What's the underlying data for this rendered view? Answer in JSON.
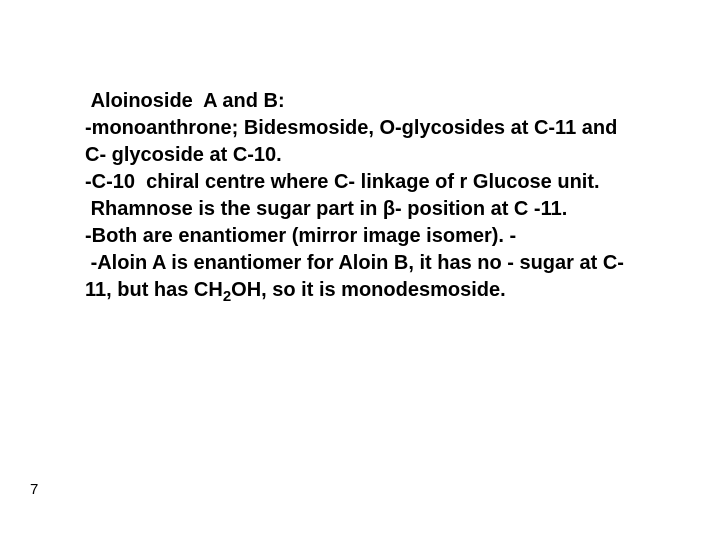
{
  "body": {
    "line1": " Aloinoside  A and B:",
    "line2": "-monoanthrone; Bidesmoside, O-glycosides at C-11 and C- glycoside at C-10.",
    "line3": "-C-10  chiral centre where C- linkage of r Glucose unit.",
    "line4": " Rhamnose is the sugar part in β- position at C -11.",
    "line5": "-Both are enantiomer (mirror image isomer). -",
    "line6_pre": " -Aloin A is enantiomer for Aloin B, it has no - sugar at C-11, but has CH",
    "line6_sub": "2",
    "line6_post": "OH, so it is monodesmoside."
  },
  "pageNumber": "7",
  "style": {
    "fontSize": 20,
    "fontWeight": "bold",
    "textColor": "#000000",
    "backgroundColor": "#ffffff",
    "pageNumberFontSize": 15,
    "contentLeft": 85,
    "contentTop": 88,
    "contentWidth": 540,
    "lineHeight": 1.35
  }
}
